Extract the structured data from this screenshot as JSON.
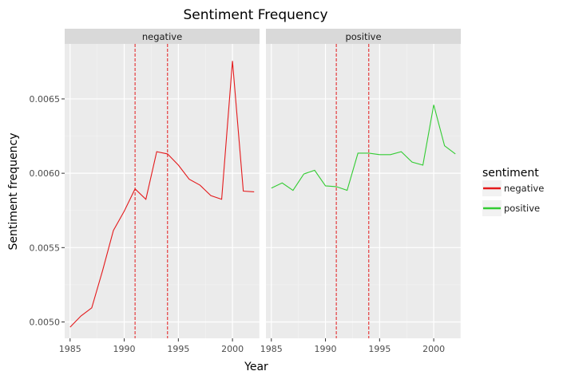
{
  "chart_data": {
    "type": "line",
    "title": "Sentiment Frequency",
    "xlabel": "Year",
    "ylabel": "Sentiment frequency",
    "facet_by": "sentiment",
    "xlim": [
      1984.5,
      2002.5
    ],
    "ylim": [
      0.00489,
      0.00687
    ],
    "x_ticks": [
      1985,
      1990,
      1995,
      2000
    ],
    "y_ticks": [
      0.005,
      0.0055,
      0.006,
      0.0065
    ],
    "y_tick_labels": [
      "0.0050",
      "0.0055",
      "0.0060",
      "0.0065"
    ],
    "vlines": [
      1991,
      1994
    ],
    "grid": true,
    "legend": {
      "title": "sentiment",
      "placement": "right",
      "items": [
        {
          "label": "negative",
          "color": "#e41a1c"
        },
        {
          "label": "positive",
          "color": "#33cc33"
        }
      ]
    },
    "colors": {
      "negative": "#e41a1c",
      "positive": "#33cc33",
      "vline": "#e41a1c",
      "panel_bg": "#ebebeb",
      "strip_bg": "#d9d9d9"
    },
    "x": [
      1985,
      1986,
      1987,
      1988,
      1989,
      1990,
      1991,
      1992,
      1993,
      1994,
      1995,
      1996,
      1997,
      1998,
      1999,
      2000,
      2001,
      2002
    ],
    "series": [
      {
        "name": "negative",
        "values": [
          0.004965,
          0.00504,
          0.005095,
          0.005345,
          0.005615,
          0.005745,
          0.005895,
          0.005825,
          0.006145,
          0.00613,
          0.006055,
          0.00596,
          0.00592,
          0.00585,
          0.005825,
          0.006755,
          0.00588,
          0.005875
        ]
      },
      {
        "name": "positive",
        "values": [
          0.0059,
          0.005935,
          0.005885,
          0.005995,
          0.00602,
          0.005915,
          0.00591,
          0.005885,
          0.006135,
          0.006135,
          0.006125,
          0.006125,
          0.006145,
          0.006075,
          0.006055,
          0.00646,
          0.006185,
          0.00613
        ]
      }
    ]
  }
}
